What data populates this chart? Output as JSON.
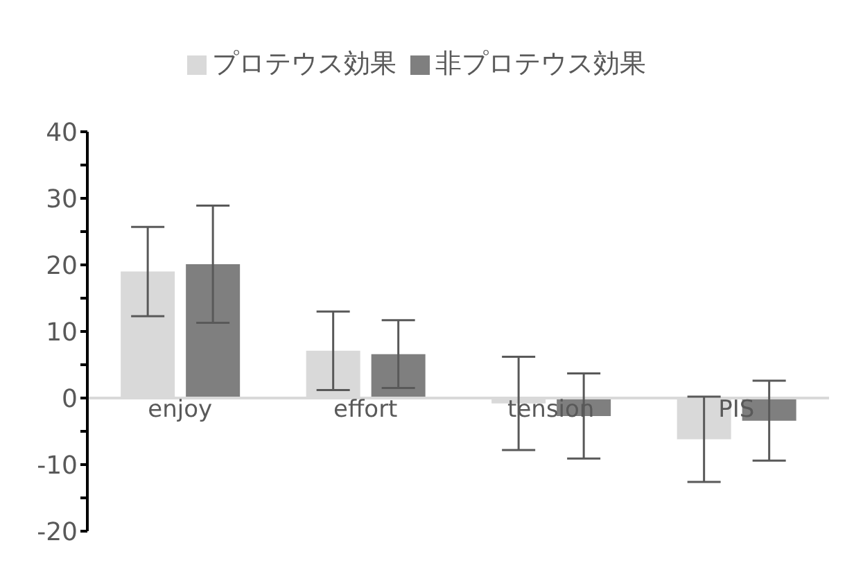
{
  "chart_data": {
    "type": "bar",
    "categories": [
      "enjoy",
      "effort",
      "tension",
      "PIS"
    ],
    "series": [
      {
        "name": "プロテウス効果",
        "color": "#d9d9d9",
        "values": [
          19.0,
          7.1,
          -0.8,
          -6.2
        ],
        "errors": [
          6.7,
          5.9,
          7.0,
          6.4
        ]
      },
      {
        "name": "非プロテウス効果",
        "color": "#7f7f7f",
        "values": [
          20.1,
          6.6,
          -2.7,
          -3.4
        ],
        "errors": [
          8.8,
          5.1,
          6.4,
          6.0
        ]
      }
    ],
    "ylim": [
      -20,
      40
    ],
    "yticks": [
      -20,
      {
        "value": -15,
        "label": null
      },
      -10,
      {
        "value": -5,
        "label": null
      },
      0,
      {
        "value": 5,
        "label": null
      },
      10,
      {
        "value": 15,
        "label": null
      },
      20,
      {
        "value": 25,
        "label": null
      },
      30,
      {
        "value": 35,
        "label": null
      },
      40
    ],
    "grid": false,
    "legend": "top"
  }
}
